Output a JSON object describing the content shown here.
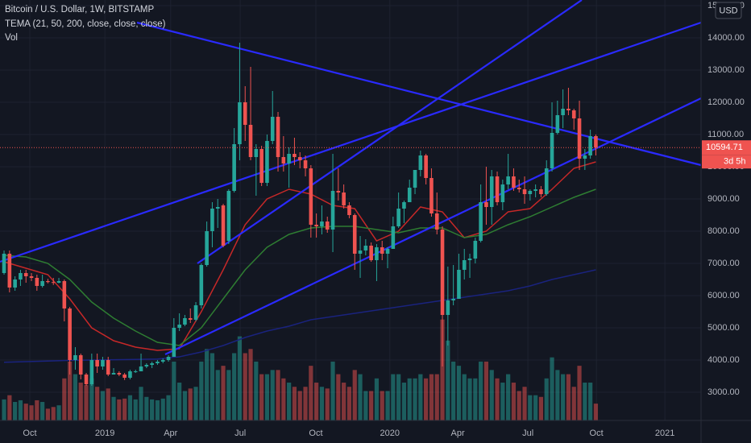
{
  "chart_data": {
    "type": "candlestick",
    "title": "Bitcoin / U.S. Dollar, 1W, BITSTAMP",
    "indicator_label": "TEMA (21, 50, 200, close, close, close)",
    "volume_label": "Vol",
    "currency_button": "USD",
    "countdown": "3d 5h",
    "up_color": "#26a69a",
    "down_color": "#ef5350",
    "grid": true,
    "xlim": [
      -0.74,
      127.2
    ],
    "ylim": [
      2125,
      15175
    ],
    "y2lim": [
      0,
      500
    ],
    "xticks": [
      {
        "value": 4.7,
        "label": "Oct"
      },
      {
        "value": 18.4,
        "label": "2019"
      },
      {
        "value": 30.4,
        "label": "Apr"
      },
      {
        "value": 43.1,
        "label": "Jul"
      },
      {
        "value": 56.9,
        "label": "Oct"
      },
      {
        "value": 70.4,
        "label": "2020"
      },
      {
        "value": 82.8,
        "label": "Apr"
      },
      {
        "value": 95.6,
        "label": "Jul"
      },
      {
        "value": 108.1,
        "label": "Oct"
      },
      {
        "value": 120.6,
        "label": "2021"
      }
    ],
    "yticks": [
      {
        "value": 3000,
        "label": "3000.00"
      },
      {
        "value": 4000,
        "label": "4000.00"
      },
      {
        "value": 5000,
        "label": "5000.00"
      },
      {
        "value": 6000,
        "label": "6000.00"
      },
      {
        "value": 7000,
        "label": "7000.00"
      },
      {
        "value": 8000,
        "label": "8000.00"
      },
      {
        "value": 9000,
        "label": "9000.00"
      },
      {
        "value": 10000,
        "label": "10000.00"
      },
      {
        "value": 11000,
        "label": "11000.00"
      },
      {
        "value": 12000,
        "label": "12000.00"
      },
      {
        "value": 13000,
        "label": "13000.00"
      },
      {
        "value": 14000,
        "label": "14000.00"
      },
      {
        "value": 15000,
        "label": "15000.00"
      }
    ],
    "open": [
      6700,
      7300,
      6250,
      6500,
      6700,
      6600,
      6550,
      6300,
      6450,
      6420,
      6400,
      6450,
      5600,
      4000,
      4150,
      3550,
      3250,
      4000,
      3800,
      4000,
      3550,
      3600,
      3550,
      3450,
      3650,
      3650,
      3800,
      3850,
      3900,
      3950,
      4000,
      4100,
      5000,
      5100,
      5300,
      5250,
      5700,
      6950,
      8000,
      8700,
      8800,
      7700,
      9250,
      10700,
      12000,
      11300,
      10300,
      10550,
      9500,
      10800,
      11550,
      10300,
      10100,
      10400,
      10300,
      10200,
      9950,
      8200,
      8150,
      8300,
      8050,
      9250,
      9200,
      8800,
      8500,
      7300,
      7400,
      7550,
      7100,
      7500,
      7300,
      7450,
      8150,
      8700,
      8900,
      9350,
      9900,
      10350,
      9650,
      8550,
      8050,
      5400,
      5850,
      5900,
      6800,
      7100,
      7150,
      7700,
      8900,
      8750,
      9700,
      8900,
      9450,
      9700,
      9350,
      9300,
      9150,
      9250,
      9300,
      9150,
      9950,
      11050,
      11600,
      11800,
      11750,
      11500,
      10250,
      10350,
      10950
    ],
    "high": [
      7400,
      7400,
      6600,
      6800,
      6800,
      6700,
      6650,
      6650,
      6520,
      6550,
      6550,
      6500,
      5650,
      4400,
      4200,
      3600,
      4200,
      4200,
      4100,
      4100,
      3750,
      3650,
      3600,
      3700,
      3700,
      4200,
      3900,
      3950,
      4000,
      4050,
      4150,
      5300,
      5450,
      5400,
      5600,
      5800,
      7000,
      8300,
      8900,
      9000,
      8850,
      9300,
      11200,
      13850,
      12500,
      13100,
      10700,
      10650,
      11000,
      12350,
      11700,
      10950,
      10600,
      10900,
      10450,
      10350,
      10050,
      8550,
      8800,
      8450,
      10400,
      9950,
      9450,
      8900,
      8550,
      7850,
      7750,
      7650,
      7600,
      7700,
      7500,
      8450,
      9200,
      8950,
      9600,
      9900,
      10500,
      10400,
      9950,
      9200,
      8150,
      6900,
      6950,
      7300,
      7450,
      7300,
      7800,
      9450,
      10000,
      9900,
      9850,
      9600,
      10400,
      9950,
      9600,
      9700,
      9300,
      9450,
      9400,
      10200,
      12000,
      12050,
      12400,
      12450,
      11800,
      12050,
      10550,
      11150,
      11000
    ],
    "low": [
      6650,
      6100,
      6150,
      6300,
      6400,
      6450,
      6150,
      6250,
      6380,
      6330,
      6380,
      5200,
      3550,
      3700,
      3400,
      3200,
      3200,
      3600,
      3700,
      3500,
      3550,
      3500,
      3380,
      3400,
      3600,
      3650,
      3750,
      3750,
      3850,
      3900,
      3950,
      4100,
      4900,
      5050,
      5150,
      5200,
      5600,
      6900,
      7500,
      8100,
      7500,
      7600,
      9200,
      10200,
      10800,
      10200,
      9100,
      9400,
      9400,
      10700,
      9850,
      9850,
      9350,
      10050,
      9950,
      9700,
      7800,
      7800,
      7900,
      7950,
      7350,
      8950,
      8700,
      8400,
      6800,
      6550,
      7250,
      7050,
      6450,
      7100,
      6850,
      7450,
      8100,
      8250,
      8900,
      9150,
      9700,
      9450,
      8450,
      7900,
      3800,
      4450,
      5700,
      5900,
      6500,
      6550,
      7000,
      7650,
      8200,
      8200,
      8800,
      8650,
      9300,
      9250,
      9200,
      8850,
      8950,
      9050,
      9050,
      9100,
      9850,
      11000,
      11200,
      11600,
      11150,
      9900,
      9900,
      10250,
      10350
    ],
    "close": [
      7300,
      6250,
      6500,
      6700,
      6600,
      6550,
      6300,
      6450,
      6420,
      6400,
      6450,
      5600,
      4000,
      4150,
      3550,
      3250,
      4000,
      3800,
      4000,
      3550,
      3600,
      3550,
      3450,
      3650,
      3650,
      3800,
      3850,
      3900,
      3950,
      4000,
      4100,
      5000,
      5100,
      5300,
      5250,
      5700,
      6950,
      8000,
      8700,
      8750,
      7550,
      9250,
      10700,
      12000,
      11300,
      10300,
      10550,
      9500,
      10800,
      11550,
      10300,
      10100,
      10400,
      10300,
      10200,
      9950,
      8200,
      8150,
      8300,
      8050,
      9250,
      9200,
      8800,
      8500,
      7300,
      7400,
      7550,
      7100,
      7500,
      7300,
      7450,
      8150,
      8700,
      8900,
      9350,
      9900,
      10350,
      9650,
      8550,
      8050,
      5400,
      5850,
      5900,
      6800,
      7100,
      7150,
      7700,
      8900,
      8750,
      9700,
      8900,
      9450,
      9700,
      9350,
      9300,
      9150,
      9250,
      9300,
      9150,
      9950,
      11050,
      11600,
      11800,
      11750,
      11500,
      10250,
      10350,
      10950,
      10594.71
    ],
    "volume": [
      25,
      30,
      22,
      24,
      20,
      18,
      24,
      22,
      14,
      16,
      18,
      50,
      70,
      55,
      45,
      42,
      50,
      40,
      35,
      38,
      28,
      25,
      26,
      30,
      25,
      40,
      28,
      25,
      24,
      26,
      30,
      70,
      45,
      35,
      38,
      40,
      70,
      85,
      80,
      60,
      65,
      60,
      80,
      100,
      80,
      85,
      70,
      55,
      55,
      60,
      60,
      50,
      45,
      40,
      35,
      40,
      65,
      45,
      40,
      38,
      70,
      55,
      45,
      40,
      60,
      55,
      35,
      35,
      50,
      35,
      35,
      55,
      55,
      45,
      50,
      50,
      55,
      50,
      55,
      55,
      120,
      95,
      70,
      65,
      55,
      50,
      50,
      70,
      70,
      60,
      50,
      45,
      55,
      45,
      35,
      40,
      30,
      30,
      28,
      50,
      75,
      60,
      55,
      55,
      40,
      65,
      45,
      45,
      20
    ],
    "tema": [
      {
        "color": "#c62828",
        "x": [
          0,
          4,
          8,
          12,
          16,
          20,
          24,
          28,
          32,
          36,
          40,
          44,
          48,
          52,
          56,
          60,
          64,
          68,
          72,
          76,
          80,
          84,
          88,
          92,
          96,
          100,
          104,
          108
        ],
        "values": [
          7050,
          6850,
          6650,
          5900,
          5000,
          4600,
          4400,
          4300,
          4350,
          5500,
          6800,
          8200,
          9000,
          9300,
          9150,
          8800,
          8700,
          7700,
          8000,
          8750,
          8600,
          7800,
          8000,
          8600,
          8700,
          9300,
          9950,
          10150
        ]
      },
      {
        "color": "#2e7d32",
        "x": [
          0,
          4,
          8,
          12,
          16,
          20,
          24,
          28,
          32,
          36,
          40,
          44,
          48,
          52,
          56,
          60,
          64,
          68,
          72,
          76,
          80,
          84,
          88,
          92,
          96,
          100,
          104,
          108
        ],
        "values": [
          7250,
          7200,
          7000,
          6500,
          5800,
          5300,
          4900,
          4550,
          4450,
          5000,
          5900,
          6800,
          7500,
          7900,
          8100,
          8150,
          8150,
          8050,
          7950,
          8100,
          8100,
          7800,
          7900,
          8200,
          8450,
          8750,
          9050,
          9300
        ]
      },
      {
        "color": "#1a237e",
        "x": [
          0,
          4,
          8,
          12,
          16,
          20,
          24,
          28,
          32,
          36,
          40,
          44,
          48,
          52,
          56,
          60,
          64,
          68,
          72,
          76,
          80,
          84,
          88,
          92,
          96,
          100,
          104,
          108
        ],
        "values": [
          3930,
          3950,
          3970,
          3990,
          4000,
          4010,
          4020,
          4030,
          4100,
          4250,
          4450,
          4700,
          4900,
          5050,
          5250,
          5350,
          5450,
          5550,
          5650,
          5750,
          5850,
          5950,
          6050,
          6150,
          6300,
          6500,
          6650,
          6800
        ]
      }
    ]
  }
}
